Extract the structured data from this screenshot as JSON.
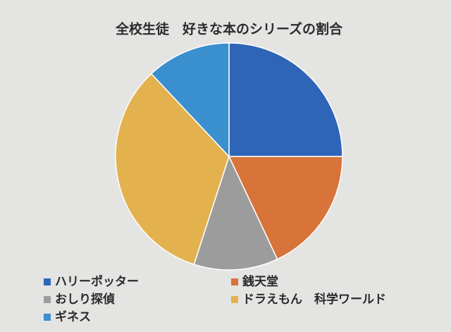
{
  "chart_data": {
    "type": "pie",
    "title": "全校生徒　好きな本のシリーズの割合",
    "categories": [
      "ハリーポッター",
      "銭天堂",
      "おしり探偵",
      "ドラえもん　科学ワールド",
      "ギネス"
    ],
    "values": [
      25,
      18,
      12,
      33,
      12
    ],
    "colors": [
      "#2f65b6",
      "#d8733a",
      "#9c9c9c",
      "#e3b24f",
      "#3a8fcf"
    ],
    "start_angle": 90,
    "direction": "clockwise",
    "legend": "bottom"
  }
}
